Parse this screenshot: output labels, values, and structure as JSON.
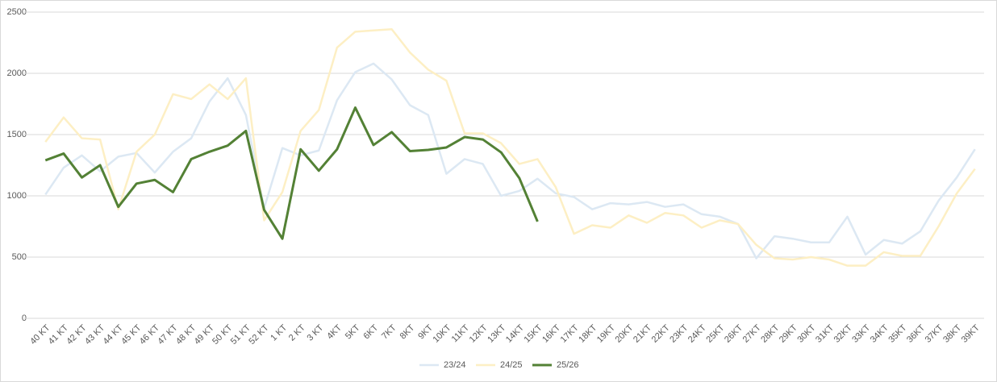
{
  "chart_data": {
    "type": "line",
    "categories": [
      "40 KT",
      "41 KT",
      "42 KT",
      "43 KT",
      "44 KT",
      "45 KT",
      "46 KT",
      "47 KT",
      "48  KT",
      "49 KT",
      "50 KT",
      "51 KT",
      "52 KT",
      "1 KT",
      "2 KT",
      "3 KT",
      "4KT",
      "5KT",
      "6KT",
      "7KT",
      "8KT",
      "9KT",
      "10KT",
      "11KT",
      "12KT",
      "13KT",
      "14KT",
      "15KT",
      "16KT",
      "17KT",
      "18KT",
      "19KT",
      "20KT",
      "21KT",
      "22KT",
      "23KT",
      "24KT",
      "25KT",
      "26KT",
      "27KT",
      "28KT",
      "29KT",
      "30KT",
      "31KT",
      "32KT",
      "33KT",
      "34KT",
      "35KT",
      "36KT",
      "37KT",
      "38KT",
      "39KT"
    ],
    "series": [
      {
        "name": "23/24",
        "color": "#dce8f3",
        "values": [
          1010,
          1230,
          1330,
          1200,
          1320,
          1350,
          1190,
          1360,
          1470,
          1770,
          1960,
          1660,
          900,
          1390,
          1330,
          1370,
          1780,
          2010,
          2080,
          1950,
          1740,
          1660,
          1180,
          1300,
          1260,
          1000,
          1040,
          1140,
          1020,
          990,
          890,
          940,
          930,
          950,
          910,
          930,
          850,
          830,
          770,
          490,
          670,
          650,
          620,
          620,
          830,
          520,
          640,
          610,
          710,
          960,
          1150,
          1380
        ]
      },
      {
        "name": "24/25",
        "color": "#fdefc4",
        "values": [
          1440,
          1640,
          1470,
          1460,
          890,
          1360,
          1500,
          1830,
          1790,
          1910,
          1790,
          1960,
          800,
          1030,
          1530,
          1700,
          2210,
          2340,
          2350,
          2360,
          2170,
          2030,
          1940,
          1510,
          1510,
          1430,
          1260,
          1300,
          1070,
          690,
          760,
          740,
          840,
          780,
          860,
          840,
          740,
          800,
          770,
          600,
          490,
          480,
          500,
          480,
          430,
          430,
          540,
          510,
          510,
          750,
          1020,
          1220
        ]
      },
      {
        "name": "25/26",
        "color": "#538135",
        "values": [
          1290,
          1345,
          1150,
          1250,
          910,
          1100,
          1130,
          1030,
          1300,
          1360,
          1410,
          1530,
          885,
          650,
          1380,
          1205,
          1380,
          1720,
          1415,
          1520,
          1365,
          1375,
          1395,
          1480,
          1460,
          1355,
          1145,
          790,
          null,
          null,
          null,
          null,
          null,
          null,
          null,
          null,
          null,
          null,
          null,
          null,
          null,
          null,
          null,
          null,
          null,
          null,
          null,
          null,
          null,
          null,
          null,
          null
        ]
      }
    ],
    "ylim": [
      0,
      2500
    ],
    "yticks": [
      0,
      500,
      1000,
      1500,
      2000,
      2500
    ],
    "grid": true,
    "legend": "bottom"
  }
}
